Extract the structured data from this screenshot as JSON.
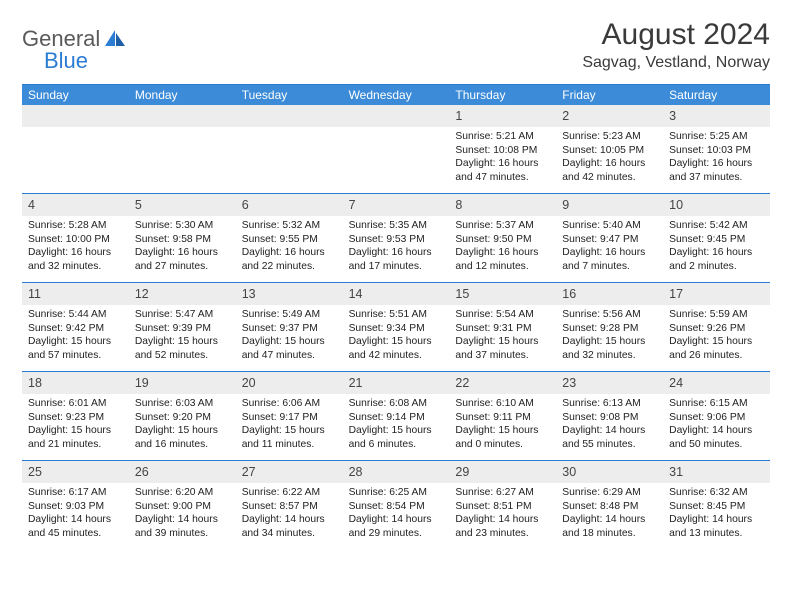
{
  "logo": {
    "part1": "General",
    "part2": "Blue"
  },
  "title": "August 2024",
  "location": "Sagvag, Vestland, Norway",
  "dayNames": [
    "Sunday",
    "Monday",
    "Tuesday",
    "Wednesday",
    "Thursday",
    "Friday",
    "Saturday"
  ],
  "colors": {
    "accent": "#2b7cd3",
    "headerBar": "#3b8bd8",
    "dayStripe": "#ededed",
    "text": "#222222",
    "background": "#ffffff"
  },
  "weeks": [
    [
      {
        "n": "",
        "sr": "",
        "ss": "",
        "dl": ""
      },
      {
        "n": "",
        "sr": "",
        "ss": "",
        "dl": ""
      },
      {
        "n": "",
        "sr": "",
        "ss": "",
        "dl": ""
      },
      {
        "n": "",
        "sr": "",
        "ss": "",
        "dl": ""
      },
      {
        "n": "1",
        "sr": "5:21 AM",
        "ss": "10:08 PM",
        "dl": "16 hours and 47 minutes."
      },
      {
        "n": "2",
        "sr": "5:23 AM",
        "ss": "10:05 PM",
        "dl": "16 hours and 42 minutes."
      },
      {
        "n": "3",
        "sr": "5:25 AM",
        "ss": "10:03 PM",
        "dl": "16 hours and 37 minutes."
      }
    ],
    [
      {
        "n": "4",
        "sr": "5:28 AM",
        "ss": "10:00 PM",
        "dl": "16 hours and 32 minutes."
      },
      {
        "n": "5",
        "sr": "5:30 AM",
        "ss": "9:58 PM",
        "dl": "16 hours and 27 minutes."
      },
      {
        "n": "6",
        "sr": "5:32 AM",
        "ss": "9:55 PM",
        "dl": "16 hours and 22 minutes."
      },
      {
        "n": "7",
        "sr": "5:35 AM",
        "ss": "9:53 PM",
        "dl": "16 hours and 17 minutes."
      },
      {
        "n": "8",
        "sr": "5:37 AM",
        "ss": "9:50 PM",
        "dl": "16 hours and 12 minutes."
      },
      {
        "n": "9",
        "sr": "5:40 AM",
        "ss": "9:47 PM",
        "dl": "16 hours and 7 minutes."
      },
      {
        "n": "10",
        "sr": "5:42 AM",
        "ss": "9:45 PM",
        "dl": "16 hours and 2 minutes."
      }
    ],
    [
      {
        "n": "11",
        "sr": "5:44 AM",
        "ss": "9:42 PM",
        "dl": "15 hours and 57 minutes."
      },
      {
        "n": "12",
        "sr": "5:47 AM",
        "ss": "9:39 PM",
        "dl": "15 hours and 52 minutes."
      },
      {
        "n": "13",
        "sr": "5:49 AM",
        "ss": "9:37 PM",
        "dl": "15 hours and 47 minutes."
      },
      {
        "n": "14",
        "sr": "5:51 AM",
        "ss": "9:34 PM",
        "dl": "15 hours and 42 minutes."
      },
      {
        "n": "15",
        "sr": "5:54 AM",
        "ss": "9:31 PM",
        "dl": "15 hours and 37 minutes."
      },
      {
        "n": "16",
        "sr": "5:56 AM",
        "ss": "9:28 PM",
        "dl": "15 hours and 32 minutes."
      },
      {
        "n": "17",
        "sr": "5:59 AM",
        "ss": "9:26 PM",
        "dl": "15 hours and 26 minutes."
      }
    ],
    [
      {
        "n": "18",
        "sr": "6:01 AM",
        "ss": "9:23 PM",
        "dl": "15 hours and 21 minutes."
      },
      {
        "n": "19",
        "sr": "6:03 AM",
        "ss": "9:20 PM",
        "dl": "15 hours and 16 minutes."
      },
      {
        "n": "20",
        "sr": "6:06 AM",
        "ss": "9:17 PM",
        "dl": "15 hours and 11 minutes."
      },
      {
        "n": "21",
        "sr": "6:08 AM",
        "ss": "9:14 PM",
        "dl": "15 hours and 6 minutes."
      },
      {
        "n": "22",
        "sr": "6:10 AM",
        "ss": "9:11 PM",
        "dl": "15 hours and 0 minutes."
      },
      {
        "n": "23",
        "sr": "6:13 AM",
        "ss": "9:08 PM",
        "dl": "14 hours and 55 minutes."
      },
      {
        "n": "24",
        "sr": "6:15 AM",
        "ss": "9:06 PM",
        "dl": "14 hours and 50 minutes."
      }
    ],
    [
      {
        "n": "25",
        "sr": "6:17 AM",
        "ss": "9:03 PM",
        "dl": "14 hours and 45 minutes."
      },
      {
        "n": "26",
        "sr": "6:20 AM",
        "ss": "9:00 PM",
        "dl": "14 hours and 39 minutes."
      },
      {
        "n": "27",
        "sr": "6:22 AM",
        "ss": "8:57 PM",
        "dl": "14 hours and 34 minutes."
      },
      {
        "n": "28",
        "sr": "6:25 AM",
        "ss": "8:54 PM",
        "dl": "14 hours and 29 minutes."
      },
      {
        "n": "29",
        "sr": "6:27 AM",
        "ss": "8:51 PM",
        "dl": "14 hours and 23 minutes."
      },
      {
        "n": "30",
        "sr": "6:29 AM",
        "ss": "8:48 PM",
        "dl": "14 hours and 18 minutes."
      },
      {
        "n": "31",
        "sr": "6:32 AM",
        "ss": "8:45 PM",
        "dl": "14 hours and 13 minutes."
      }
    ]
  ]
}
